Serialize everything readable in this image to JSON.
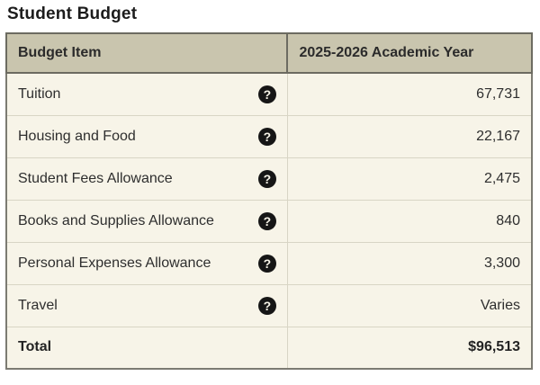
{
  "page_title": "Student Budget",
  "icons": {
    "help_glyph": "?"
  },
  "colors": {
    "header_bg": "#c9c5ae",
    "header_border": "#6c6b61",
    "row_bg": "#f7f4e8",
    "inner_border": "#d8d5c5",
    "outer_border": "#7c7b72",
    "help_icon_bg": "#161616",
    "text": "#2e2e2e"
  },
  "table": {
    "columns": [
      {
        "label": "Budget Item"
      },
      {
        "label": "2025-2026 Academic Year"
      }
    ],
    "rows": [
      {
        "label": "Tuition",
        "value": "67,731"
      },
      {
        "label": "Housing and Food",
        "value": "22,167"
      },
      {
        "label": "Student Fees Allowance",
        "value": "2,475"
      },
      {
        "label": "Books and Supplies Allowance",
        "value": "840"
      },
      {
        "label": "Personal Expenses Allowance",
        "value": "3,300"
      },
      {
        "label": "Travel",
        "value": "Varies"
      }
    ],
    "total": {
      "label": "Total",
      "value": "$96,513"
    }
  }
}
